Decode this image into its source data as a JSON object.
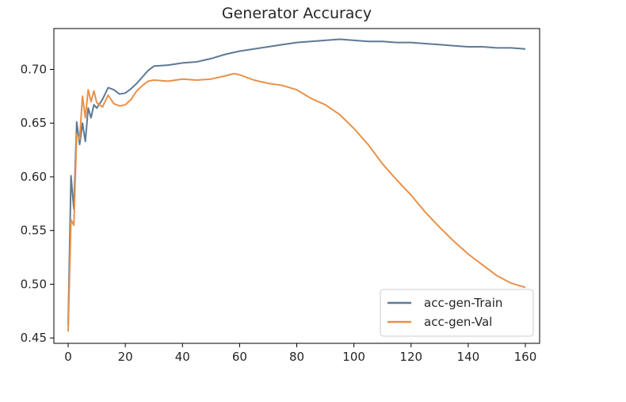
{
  "chart_data": {
    "type": "line",
    "title": "Generator Accuracy",
    "xlabel": "",
    "ylabel": "",
    "xlim": [
      -5,
      165
    ],
    "ylim": [
      0.445,
      0.738
    ],
    "xticks": [
      0,
      20,
      40,
      60,
      80,
      100,
      120,
      140,
      160
    ],
    "yticks": [
      0.45,
      0.5,
      0.55,
      0.6,
      0.65,
      0.7
    ],
    "xtick_labels": [
      "0",
      "20",
      "40",
      "60",
      "80",
      "100",
      "120",
      "140",
      "160"
    ],
    "ytick_labels": [
      "0.45",
      "0.50",
      "0.55",
      "0.60",
      "0.65",
      "0.70"
    ],
    "grid": false,
    "legend_position": "lower right",
    "series": [
      {
        "name": "acc-gen-Train",
        "color": "#5d7a96",
        "points": [
          [
            0,
            0.462
          ],
          [
            1,
            0.601
          ],
          [
            2,
            0.57
          ],
          [
            3,
            0.651
          ],
          [
            4,
            0.63
          ],
          [
            5,
            0.65
          ],
          [
            6,
            0.633
          ],
          [
            7,
            0.664
          ],
          [
            8,
            0.655
          ],
          [
            9,
            0.667
          ],
          [
            10,
            0.664
          ],
          [
            12,
            0.672
          ],
          [
            14,
            0.683
          ],
          [
            16,
            0.681
          ],
          [
            18,
            0.677
          ],
          [
            20,
            0.678
          ],
          [
            22,
            0.682
          ],
          [
            24,
            0.687
          ],
          [
            26,
            0.693
          ],
          [
            28,
            0.699
          ],
          [
            30,
            0.703
          ],
          [
            35,
            0.704
          ],
          [
            40,
            0.706
          ],
          [
            45,
            0.707
          ],
          [
            50,
            0.71
          ],
          [
            55,
            0.714
          ],
          [
            60,
            0.717
          ],
          [
            65,
            0.719
          ],
          [
            70,
            0.721
          ],
          [
            75,
            0.723
          ],
          [
            80,
            0.725
          ],
          [
            85,
            0.726
          ],
          [
            90,
            0.727
          ],
          [
            95,
            0.728
          ],
          [
            100,
            0.727
          ],
          [
            105,
            0.726
          ],
          [
            110,
            0.726
          ],
          [
            115,
            0.725
          ],
          [
            120,
            0.725
          ],
          [
            125,
            0.724
          ],
          [
            130,
            0.723
          ],
          [
            135,
            0.722
          ],
          [
            140,
            0.721
          ],
          [
            145,
            0.721
          ],
          [
            150,
            0.72
          ],
          [
            155,
            0.72
          ],
          [
            160,
            0.719
          ]
        ]
      },
      {
        "name": "acc-gen-Val",
        "color": "#e8914a",
        "points": [
          [
            0,
            0.456
          ],
          [
            1,
            0.56
          ],
          [
            2,
            0.555
          ],
          [
            3,
            0.64
          ],
          [
            4,
            0.635
          ],
          [
            5,
            0.675
          ],
          [
            6,
            0.655
          ],
          [
            7,
            0.681
          ],
          [
            8,
            0.67
          ],
          [
            9,
            0.68
          ],
          [
            10,
            0.669
          ],
          [
            12,
            0.665
          ],
          [
            14,
            0.676
          ],
          [
            16,
            0.668
          ],
          [
            18,
            0.666
          ],
          [
            20,
            0.667
          ],
          [
            22,
            0.672
          ],
          [
            24,
            0.68
          ],
          [
            26,
            0.685
          ],
          [
            28,
            0.689
          ],
          [
            30,
            0.69
          ],
          [
            35,
            0.689
          ],
          [
            40,
            0.691
          ],
          [
            45,
            0.69
          ],
          [
            50,
            0.691
          ],
          [
            55,
            0.694
          ],
          [
            58,
            0.696
          ],
          [
            60,
            0.695
          ],
          [
            65,
            0.69
          ],
          [
            70,
            0.687
          ],
          [
            75,
            0.685
          ],
          [
            80,
            0.681
          ],
          [
            85,
            0.673
          ],
          [
            90,
            0.667
          ],
          [
            95,
            0.658
          ],
          [
            100,
            0.645
          ],
          [
            105,
            0.63
          ],
          [
            110,
            0.612
          ],
          [
            115,
            0.597
          ],
          [
            120,
            0.583
          ],
          [
            125,
            0.567
          ],
          [
            130,
            0.553
          ],
          [
            135,
            0.54
          ],
          [
            140,
            0.528
          ],
          [
            145,
            0.518
          ],
          [
            150,
            0.508
          ],
          [
            155,
            0.501
          ],
          [
            160,
            0.497
          ]
        ]
      }
    ]
  }
}
